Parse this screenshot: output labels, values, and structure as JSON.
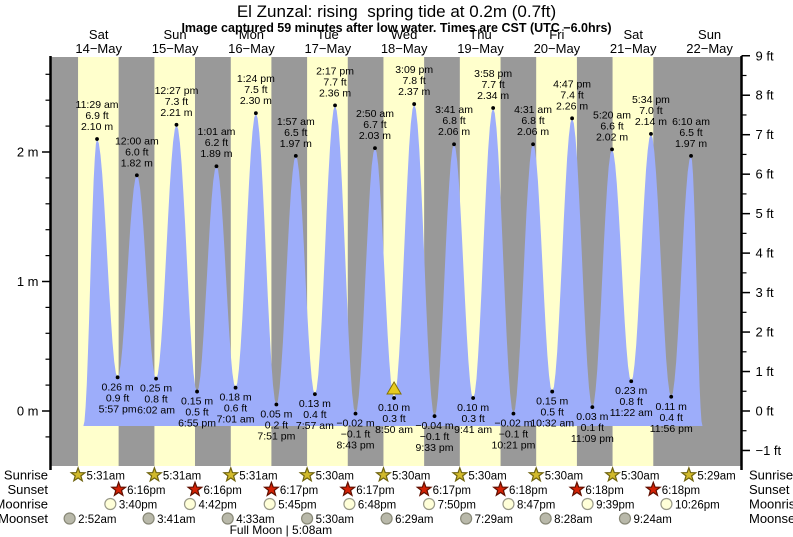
{
  "chart_data": {
    "type": "area",
    "title": "El Zunzal: rising  spring tide at 0.2m (0.7ft)",
    "subtitle": "Image captured 59 minutes after low water. Times are CST (UTC −6.0hrs)",
    "footnote": "Full Moon | 5:08am",
    "footnote_t": 53.133,
    "colors": {
      "day_band": "#ffffcc",
      "night_band": "#999999",
      "tide_fill": "#9dadfa",
      "day_label": "#ee2020",
      "sunrise_star_fill": "#d2ba2c",
      "sunrise_star_stroke": "#6f6410",
      "sunset_star_fill": "#d42105",
      "sunset_star_stroke": "#5f0f00",
      "moonrise_fill": "#ffffd8",
      "moonrise_stroke": "#999988",
      "moonset_fill": "#b9b9aa",
      "moonset_stroke": "#888877",
      "marker_fill": "#e7cb1f",
      "marker_stroke": "#857200"
    },
    "days": [
      {
        "dow": "Sat",
        "date": "14−May"
      },
      {
        "dow": "Sun",
        "date": "15−May"
      },
      {
        "dow": "Mon",
        "date": "16−May"
      },
      {
        "dow": "Tue",
        "date": "17−May"
      },
      {
        "dow": "Wed",
        "date": "18−May"
      },
      {
        "dow": "Thu",
        "date": "19−May"
      },
      {
        "dow": "Fri",
        "date": "20−May"
      },
      {
        "dow": "Sat",
        "date": "21−May"
      },
      {
        "dow": "Sun",
        "date": "22−May"
      }
    ],
    "axes": {
      "left_unit": "m",
      "right_unit": "ft",
      "left_ticks": [
        {
          "value": 0,
          "label": "0 m"
        },
        {
          "value": 1,
          "label": "1 m"
        },
        {
          "value": 2,
          "label": "2 m"
        }
      ],
      "right_ticks": [
        {
          "value": -1,
          "label": "−1 ft"
        },
        {
          "value": 0,
          "label": "0 ft"
        },
        {
          "value": 1,
          "label": "1 ft"
        },
        {
          "value": 2,
          "label": "2 ft"
        },
        {
          "value": 3,
          "label": "3 ft"
        },
        {
          "value": 4,
          "label": "4 ft"
        },
        {
          "value": 5,
          "label": "5 ft"
        },
        {
          "value": 6,
          "label": "6 ft"
        },
        {
          "value": 7,
          "label": "7 ft"
        },
        {
          "value": 8,
          "label": "8 ft"
        },
        {
          "value": 9,
          "label": "9 ft"
        }
      ]
    },
    "extremes": [
      {
        "type": "high",
        "t": 11.483,
        "h": 2.1,
        "time": "11:29 am",
        "ft": "6.9 ft",
        "m": "2.10 m"
      },
      {
        "type": "low",
        "t": 17.95,
        "h": 0.26,
        "time": "5:57 pm",
        "ft": "0.9 ft",
        "m": "0.26 m"
      },
      {
        "type": "high",
        "t": 24.0,
        "h": 1.82,
        "time": "12:00 am",
        "ft": "6.0 ft",
        "m": "1.82 m"
      },
      {
        "type": "low",
        "t": 30.033,
        "h": 0.25,
        "time": "6:02 am",
        "ft": "0.8 ft",
        "m": "0.25 m"
      },
      {
        "type": "high",
        "t": 36.45,
        "h": 2.21,
        "time": "12:27 pm",
        "ft": "7.3 ft",
        "m": "2.21 m"
      },
      {
        "type": "low",
        "t": 42.917,
        "h": 0.15,
        "time": "6:55 pm",
        "ft": "0.5 ft",
        "m": "0.15 m"
      },
      {
        "type": "high",
        "t": 49.017,
        "h": 1.89,
        "time": "1:01 am",
        "ft": "6.2 ft",
        "m": "1.89 m"
      },
      {
        "type": "low",
        "t": 55.017,
        "h": 0.18,
        "time": "7:01 am",
        "ft": "0.6 ft",
        "m": "0.18 m"
      },
      {
        "type": "high",
        "t": 61.4,
        "h": 2.3,
        "time": "1:24 pm",
        "ft": "7.5 ft",
        "m": "2.30 m"
      },
      {
        "type": "low",
        "t": 67.85,
        "h": 0.05,
        "time": "7:51 pm",
        "ft": "0.2 ft",
        "m": "0.05 m"
      },
      {
        "type": "high",
        "t": 73.95,
        "h": 1.97,
        "time": "1:57 am",
        "ft": "6.5 ft",
        "m": "1.97 m"
      },
      {
        "type": "low",
        "t": 79.95,
        "h": 0.13,
        "time": "7:57 am",
        "ft": "0.4 ft",
        "m": "0.13 m"
      },
      {
        "type": "high",
        "t": 86.283,
        "h": 2.36,
        "time": "2:17 pm",
        "ft": "7.7 ft",
        "m": "2.36 m"
      },
      {
        "type": "low",
        "t": 92.717,
        "h": -0.02,
        "time": "8:43 pm",
        "ft": "−0.1 ft",
        "m": "−0.02 m"
      },
      {
        "type": "high",
        "t": 98.833,
        "h": 2.03,
        "time": "2:50 am",
        "ft": "6.7 ft",
        "m": "2.03 m"
      },
      {
        "type": "low",
        "t": 104.833,
        "h": 0.1,
        "time": "8:50 am",
        "ft": "0.3 ft",
        "m": "0.10 m",
        "marker": true
      },
      {
        "type": "high",
        "t": 111.15,
        "h": 2.37,
        "time": "3:09 pm",
        "ft": "7.8 ft",
        "m": "2.37 m"
      },
      {
        "type": "low",
        "t": 117.55,
        "h": -0.04,
        "time": "9:33 pm",
        "ft": "−0.1 ft",
        "m": "−0.04 m"
      },
      {
        "type": "high",
        "t": 123.683,
        "h": 2.06,
        "time": "3:41 am",
        "ft": "6.8 ft",
        "m": "2.06 m"
      },
      {
        "type": "low",
        "t": 129.683,
        "h": 0.1,
        "time": "9:41 am",
        "ft": "0.3 ft",
        "m": "0.10 m"
      },
      {
        "type": "high",
        "t": 135.967,
        "h": 2.34,
        "time": "3:58 pm",
        "ft": "7.7 ft",
        "m": "2.34 m"
      },
      {
        "type": "low",
        "t": 142.35,
        "h": -0.02,
        "time": "10:21 pm",
        "ft": "−0.1 ft",
        "m": "−0.02 m"
      },
      {
        "type": "high",
        "t": 148.517,
        "h": 2.06,
        "time": "4:31 am",
        "ft": "6.8 ft",
        "m": "2.06 m"
      },
      {
        "type": "low",
        "t": 154.533,
        "h": 0.15,
        "time": "10:32 am",
        "ft": "0.5 ft",
        "m": "0.15 m"
      },
      {
        "type": "high",
        "t": 160.783,
        "h": 2.26,
        "time": "4:47 pm",
        "ft": "7.4 ft",
        "m": "2.26 m"
      },
      {
        "type": "low",
        "t": 167.15,
        "h": 0.03,
        "time": "11:09 pm",
        "ft": "0.1 ft",
        "m": "0.03 m"
      },
      {
        "type": "high",
        "t": 173.333,
        "h": 2.02,
        "time": "5:20 am",
        "ft": "6.6 ft",
        "m": "2.02 m"
      },
      {
        "type": "low",
        "t": 179.367,
        "h": 0.23,
        "time": "11:22 am",
        "ft": "0.8 ft",
        "m": "0.23 m"
      },
      {
        "type": "high",
        "t": 185.567,
        "h": 2.14,
        "time": "5:34 pm",
        "ft": "7.0 ft",
        "m": "2.14 m"
      },
      {
        "type": "low",
        "t": 191.933,
        "h": 0.11,
        "time": "11:56 pm",
        "ft": "0.4 ft",
        "m": "0.11 m"
      },
      {
        "type": "high",
        "t": 198.167,
        "h": 1.97,
        "time": "6:10 am",
        "ft": "6.5 ft",
        "m": "1.97 m"
      }
    ],
    "rows": [
      {
        "id": "sunrise",
        "label": "Sunrise",
        "icon": "sunrise-star",
        "events": [
          {
            "t": 5.517,
            "time": "5:31am"
          },
          {
            "t": 29.517,
            "time": "5:31am"
          },
          {
            "t": 53.517,
            "time": "5:31am"
          },
          {
            "t": 77.5,
            "time": "5:30am"
          },
          {
            "t": 101.5,
            "time": "5:30am"
          },
          {
            "t": 125.5,
            "time": "5:30am"
          },
          {
            "t": 149.5,
            "time": "5:30am"
          },
          {
            "t": 173.5,
            "time": "5:30am"
          },
          {
            "t": 197.483,
            "time": "5:29am"
          }
        ]
      },
      {
        "id": "sunset",
        "label": "Sunset",
        "icon": "sunset-star",
        "events": [
          {
            "t": 18.267,
            "time": "6:16pm"
          },
          {
            "t": 42.267,
            "time": "6:16pm"
          },
          {
            "t": 66.283,
            "time": "6:17pm"
          },
          {
            "t": 90.283,
            "time": "6:17pm"
          },
          {
            "t": 114.283,
            "time": "6:17pm"
          },
          {
            "t": 138.3,
            "time": "6:18pm"
          },
          {
            "t": 162.3,
            "time": "6:18pm"
          },
          {
            "t": 186.3,
            "time": "6:18pm"
          }
        ]
      },
      {
        "id": "moonrise",
        "label": "Moonrise",
        "icon": "moonrise-circle",
        "events": [
          {
            "t": 15.667,
            "time": "3:40pm"
          },
          {
            "t": 40.7,
            "time": "4:42pm"
          },
          {
            "t": 65.75,
            "time": "5:45pm"
          },
          {
            "t": 90.8,
            "time": "6:48pm"
          },
          {
            "t": 115.833,
            "time": "7:50pm"
          },
          {
            "t": 140.783,
            "time": "8:47pm"
          },
          {
            "t": 165.65,
            "time": "9:39pm"
          },
          {
            "t": 190.433,
            "time": "10:26pm"
          }
        ]
      },
      {
        "id": "moonset",
        "label": "Moonset",
        "icon": "moonset-circle",
        "events": [
          {
            "t": 2.867,
            "time": "2:52am"
          },
          {
            "t": 27.683,
            "time": "3:41am"
          },
          {
            "t": 52.55,
            "time": "4:33am"
          },
          {
            "t": 77.5,
            "time": "5:30am"
          },
          {
            "t": 102.483,
            "time": "6:29am"
          },
          {
            "t": 127.483,
            "time": "7:29am"
          },
          {
            "t": 152.467,
            "time": "8:28am"
          },
          {
            "t": 177.4,
            "time": "9:24am"
          }
        ]
      }
    ]
  }
}
